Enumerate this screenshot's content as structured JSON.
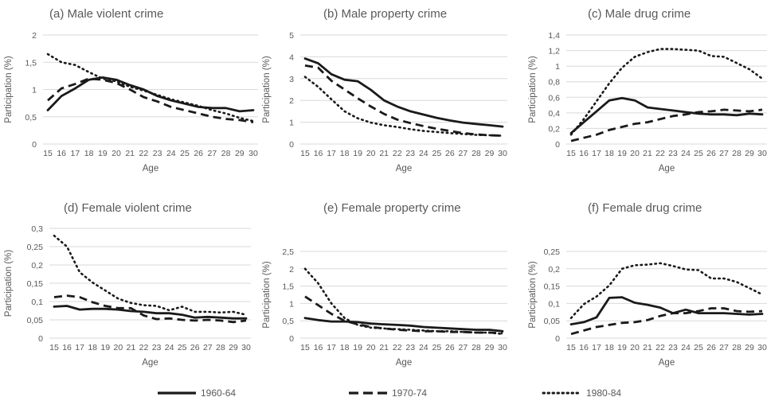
{
  "chart_data": [
    {
      "type": "line",
      "title": "(a) Male violent crime",
      "xlabel": "Age",
      "ylabel": "Participation (%)",
      "ylim": [
        0,
        2
      ],
      "yticks": [
        "0",
        "0,5",
        "1",
        "1,5",
        "2"
      ],
      "categories": [
        "15",
        "16",
        "17",
        "18",
        "19",
        "20",
        "21",
        "22",
        "23",
        "24",
        "25",
        "26",
        "27",
        "28",
        "29",
        "30"
      ],
      "series": [
        {
          "name": "1960-64",
          "values": [
            0.62,
            0.88,
            1.02,
            1.18,
            1.22,
            1.18,
            1.08,
            1.0,
            0.88,
            0.8,
            0.74,
            0.68,
            0.66,
            0.66,
            0.6,
            0.62
          ]
        },
        {
          "name": "1970-74",
          "values": [
            0.8,
            1.02,
            1.1,
            1.2,
            1.18,
            1.12,
            1.0,
            0.86,
            0.78,
            0.68,
            0.62,
            0.56,
            0.5,
            0.46,
            0.44,
            0.4
          ]
        },
        {
          "name": "1980-84",
          "values": [
            1.65,
            1.5,
            1.45,
            1.32,
            1.2,
            1.15,
            1.05,
            0.98,
            0.9,
            0.82,
            0.76,
            0.7,
            0.62,
            0.56,
            0.48,
            0.42
          ]
        }
      ]
    },
    {
      "type": "line",
      "title": "(b) Male property crime",
      "xlabel": "Age",
      "ylabel": "Participation (%)",
      "ylim": [
        0,
        5
      ],
      "yticks": [
        "0",
        "1",
        "2",
        "3",
        "4",
        "5"
      ],
      "categories": [
        "15",
        "16",
        "17",
        "18",
        "19",
        "20",
        "21",
        "22",
        "23",
        "24",
        "25",
        "26",
        "27",
        "28",
        "29",
        "30"
      ],
      "series": [
        {
          "name": "1960-64",
          "values": [
            3.92,
            3.7,
            3.2,
            2.95,
            2.88,
            2.48,
            2.0,
            1.72,
            1.5,
            1.35,
            1.2,
            1.08,
            0.98,
            0.92,
            0.86,
            0.8
          ]
        },
        {
          "name": "1970-74",
          "values": [
            3.6,
            3.5,
            2.9,
            2.5,
            2.1,
            1.72,
            1.38,
            1.12,
            0.96,
            0.82,
            0.7,
            0.6,
            0.5,
            0.44,
            0.4,
            0.38
          ]
        },
        {
          "name": "1980-84",
          "values": [
            3.08,
            2.62,
            2.05,
            1.5,
            1.18,
            0.98,
            0.86,
            0.78,
            0.68,
            0.6,
            0.55,
            0.5,
            0.46,
            0.42,
            0.4,
            0.38
          ]
        }
      ]
    },
    {
      "type": "line",
      "title": "(c) Male drug crime",
      "xlabel": "Age",
      "ylabel": "Participation (%)",
      "ylim": [
        0,
        1.4
      ],
      "yticks": [
        "0",
        "0,2",
        "0,4",
        "0,6",
        "0,8",
        "1",
        "1,2",
        "1,4"
      ],
      "categories": [
        "15",
        "16",
        "17",
        "18",
        "19",
        "20",
        "21",
        "22",
        "23",
        "24",
        "25",
        "26",
        "27",
        "28",
        "29",
        "30"
      ],
      "series": [
        {
          "name": "1960-64",
          "values": [
            0.14,
            0.28,
            0.42,
            0.56,
            0.59,
            0.56,
            0.47,
            0.45,
            0.43,
            0.41,
            0.39,
            0.38,
            0.38,
            0.37,
            0.39,
            0.38
          ]
        },
        {
          "name": "1970-74",
          "values": [
            0.04,
            0.08,
            0.12,
            0.18,
            0.22,
            0.26,
            0.28,
            0.32,
            0.36,
            0.38,
            0.41,
            0.42,
            0.44,
            0.43,
            0.42,
            0.44
          ]
        },
        {
          "name": "1980-84",
          "values": [
            0.12,
            0.32,
            0.55,
            0.78,
            0.98,
            1.12,
            1.18,
            1.22,
            1.22,
            1.21,
            1.2,
            1.13,
            1.12,
            1.04,
            0.96,
            0.84
          ]
        }
      ]
    },
    {
      "type": "line",
      "title": "(d) Female violent crime",
      "xlabel": "Age",
      "ylabel": "Participation (%)",
      "ylim": [
        0,
        0.3
      ],
      "yticks": [
        "0",
        "0,05",
        "0,1",
        "0,15",
        "0,2",
        "0,25",
        "0,3"
      ],
      "categories": [
        "15",
        "16",
        "17",
        "18",
        "19",
        "20",
        "21",
        "22",
        "23",
        "24",
        "25",
        "26",
        "27",
        "28",
        "29",
        "30"
      ],
      "series": [
        {
          "name": "1960-64",
          "values": [
            0.086,
            0.088,
            0.078,
            0.08,
            0.08,
            0.078,
            0.074,
            0.072,
            0.068,
            0.068,
            0.064,
            0.056,
            0.058,
            0.056,
            0.054,
            0.054
          ]
        },
        {
          "name": "1970-74",
          "values": [
            0.112,
            0.116,
            0.112,
            0.098,
            0.088,
            0.082,
            0.082,
            0.062,
            0.052,
            0.054,
            0.05,
            0.048,
            0.05,
            0.048,
            0.044,
            0.048
          ]
        },
        {
          "name": "1980-84",
          "values": [
            0.28,
            0.25,
            0.18,
            0.152,
            0.13,
            0.108,
            0.096,
            0.09,
            0.088,
            0.076,
            0.086,
            0.072,
            0.072,
            0.07,
            0.072,
            0.064
          ]
        }
      ]
    },
    {
      "type": "line",
      "title": "(e) Female property crime",
      "xlabel": "Age",
      "ylabel": "Participation (%)",
      "ylim": [
        0,
        2.5
      ],
      "yticks": [
        "0",
        "0,5",
        "1",
        "1,5",
        "2",
        "2,5"
      ],
      "categories": [
        "15",
        "16",
        "17",
        "18",
        "19",
        "20",
        "21",
        "22",
        "23",
        "24",
        "25",
        "26",
        "27",
        "28",
        "29",
        "30"
      ],
      "series": [
        {
          "name": "1960-64",
          "values": [
            0.58,
            0.52,
            0.48,
            0.48,
            0.46,
            0.42,
            0.4,
            0.38,
            0.36,
            0.32,
            0.3,
            0.28,
            0.26,
            0.24,
            0.24,
            0.2
          ]
        },
        {
          "name": "1970-74",
          "values": [
            1.2,
            0.95,
            0.7,
            0.5,
            0.4,
            0.32,
            0.28,
            0.24,
            0.22,
            0.2,
            0.2,
            0.18,
            0.18,
            0.16,
            0.16,
            0.14
          ]
        },
        {
          "name": "1980-84",
          "values": [
            2.0,
            1.58,
            1.0,
            0.58,
            0.38,
            0.3,
            0.28,
            0.26,
            0.24,
            0.22,
            0.2,
            0.2,
            0.18,
            0.16,
            0.16,
            0.12
          ]
        }
      ]
    },
    {
      "type": "line",
      "title": "(f) Female drug crime",
      "xlabel": "Age",
      "ylabel": "Participation (%)",
      "ylim": [
        0,
        0.25
      ],
      "yticks": [
        "0",
        "0,05",
        "0,1",
        "0,15",
        "0,2",
        "0,25"
      ],
      "categories": [
        "15",
        "16",
        "17",
        "18",
        "19",
        "20",
        "21",
        "22",
        "23",
        "24",
        "25",
        "26",
        "27",
        "28",
        "29",
        "30"
      ],
      "series": [
        {
          "name": "1960-64",
          "values": [
            0.04,
            0.046,
            0.06,
            0.116,
            0.118,
            0.102,
            0.096,
            0.088,
            0.072,
            0.082,
            0.072,
            0.072,
            0.072,
            0.07,
            0.068,
            0.07
          ]
        },
        {
          "name": "1970-74",
          "values": [
            0.012,
            0.022,
            0.032,
            0.038,
            0.044,
            0.046,
            0.052,
            0.064,
            0.072,
            0.072,
            0.078,
            0.086,
            0.086,
            0.078,
            0.076,
            0.078
          ]
        },
        {
          "name": "1980-84",
          "values": [
            0.058,
            0.098,
            0.12,
            0.152,
            0.2,
            0.21,
            0.212,
            0.216,
            0.208,
            0.198,
            0.196,
            0.172,
            0.172,
            0.162,
            0.144,
            0.126
          ]
        }
      ]
    }
  ],
  "legend": {
    "placement": "bottom",
    "entries": [
      {
        "name": "1960-64",
        "style": "solid"
      },
      {
        "name": "1970-74",
        "style": "dashed"
      },
      {
        "name": "1980-84",
        "style": "dotted"
      }
    ]
  },
  "colors": {
    "line": "#1a1a1a",
    "grid": "#d9d9d9",
    "text": "#595959"
  }
}
